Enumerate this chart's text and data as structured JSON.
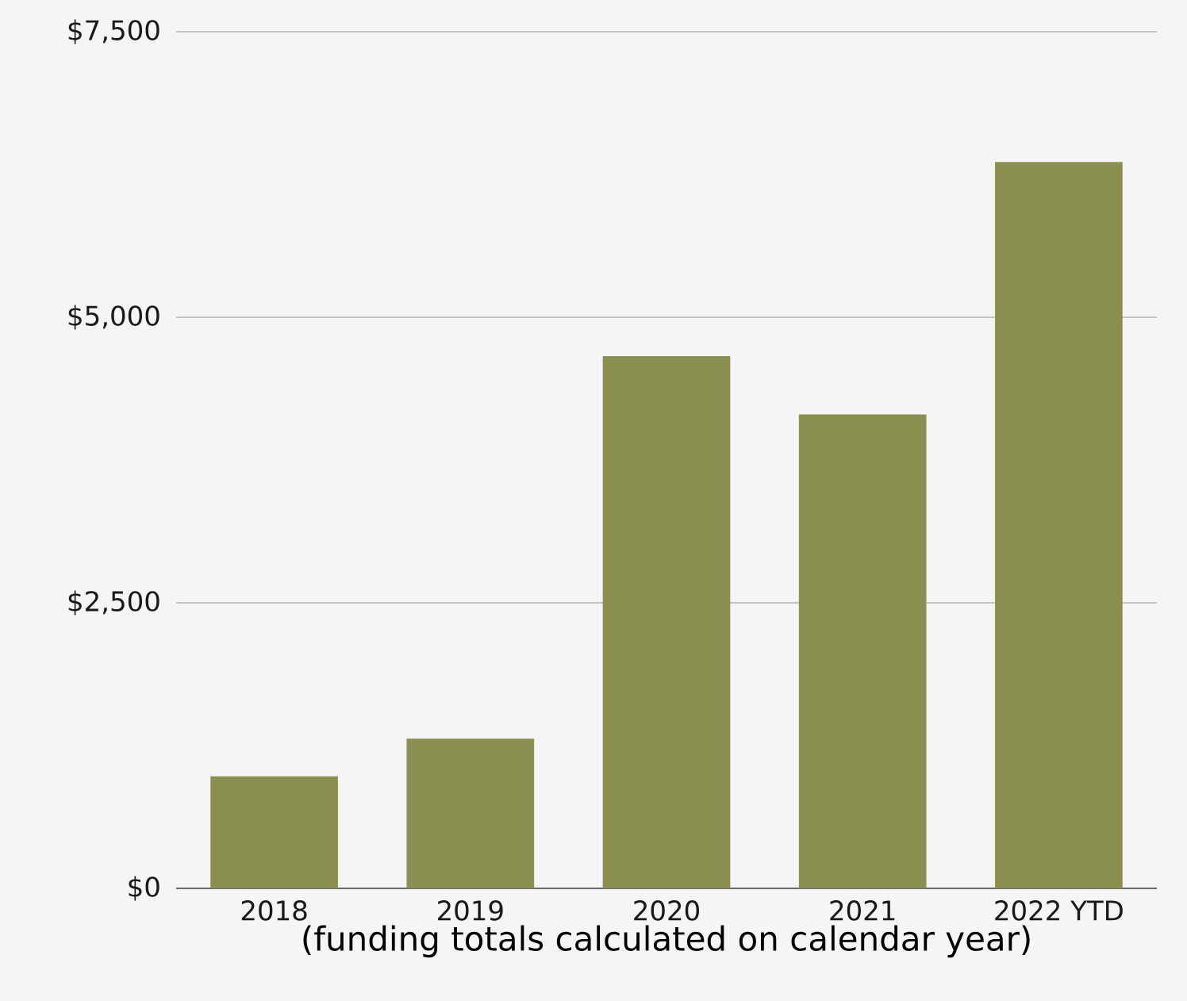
{
  "chart_data": {
    "type": "bar",
    "xlabel": "(funding totals calculated on calendar year)",
    "categories": [
      "2018",
      "2019",
      "2020",
      "2021",
      "2022 YTD"
    ],
    "values": [
      980,
      1310,
      4660,
      4150,
      6360
    ],
    "color": "#8b8f50",
    "ylim": [
      0,
      7500
    ],
    "yticks": [
      {
        "value": 0,
        "label": "$0"
      },
      {
        "value": 2500,
        "label": "$2,500"
      },
      {
        "value": 5000,
        "label": "$5,000"
      },
      {
        "value": 7500,
        "label": "$7,500"
      }
    ],
    "grid": "y"
  }
}
